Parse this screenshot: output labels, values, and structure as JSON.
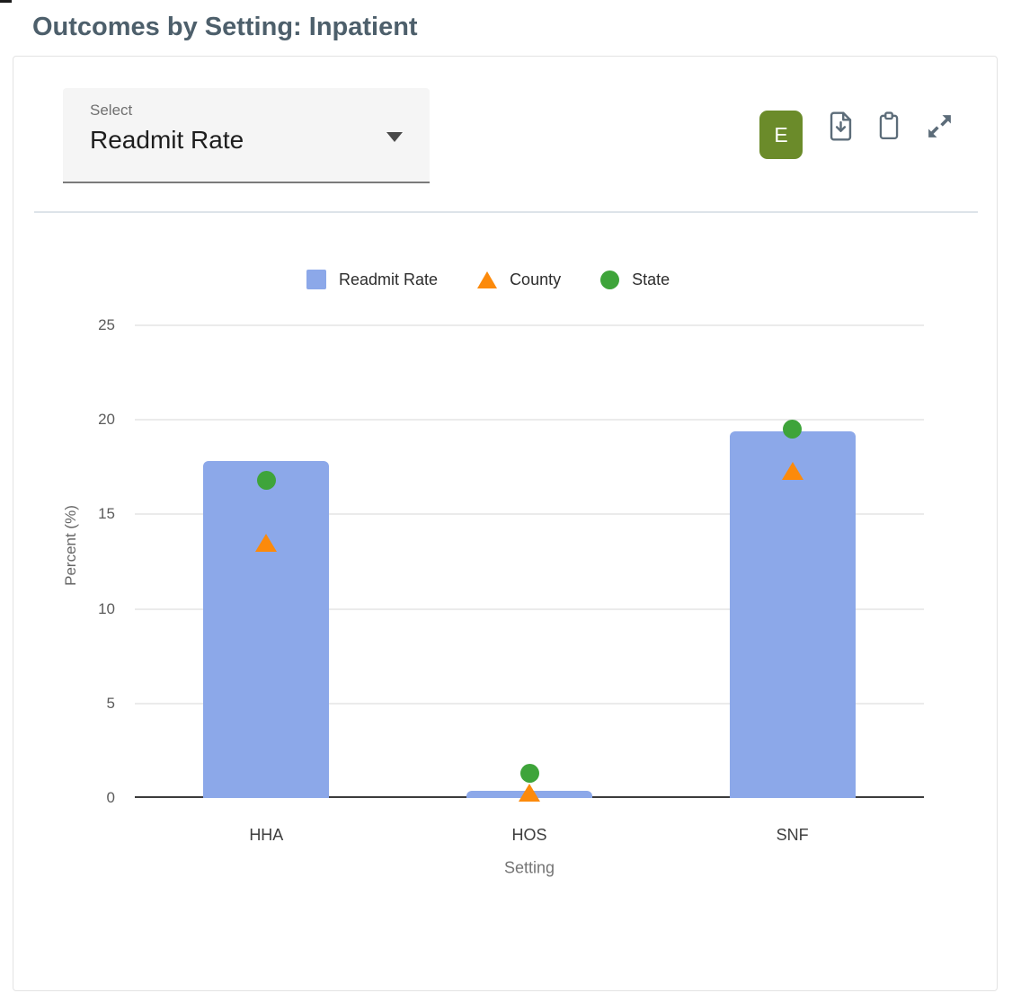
{
  "page": {
    "title": "Outcomes by Setting: Inpatient"
  },
  "select": {
    "label": "Select",
    "value": "Readmit Rate"
  },
  "toolbar": {
    "export_button": "E",
    "icons": [
      "file-download-icon",
      "clipboard-icon",
      "expand-icon"
    ]
  },
  "colors": {
    "title": "#4d5f6b",
    "bar": "#8ca8e9",
    "county": "#fc8a0b",
    "state": "#3ea43a",
    "export_button": "#6b8b2a",
    "icon": "#5c6c79",
    "gridline": "#ebebeb",
    "axis": "#3c3c3c"
  },
  "chart_data": {
    "type": "bar",
    "categories": [
      "HHA",
      "HOS",
      "SNF"
    ],
    "series": [
      {
        "name": "Readmit Rate",
        "type": "bar",
        "marker": "square",
        "color": "#8ca8e9",
        "values": [
          17.8,
          0.4,
          19.4
        ]
      },
      {
        "name": "County",
        "type": "scatter",
        "marker": "triangle",
        "color": "#fc8a0b",
        "values": [
          13.5,
          0.3,
          17.3
        ]
      },
      {
        "name": "State",
        "type": "scatter",
        "marker": "circle",
        "color": "#3ea43a",
        "values": [
          16.8,
          1.3,
          19.5
        ]
      }
    ],
    "title": "",
    "xlabel": "Setting",
    "ylabel": "Percent (%)",
    "ylim": [
      0,
      25
    ],
    "yticks": [
      0,
      5,
      10,
      15,
      20,
      25
    ],
    "grid": true,
    "legend_position": "top"
  }
}
